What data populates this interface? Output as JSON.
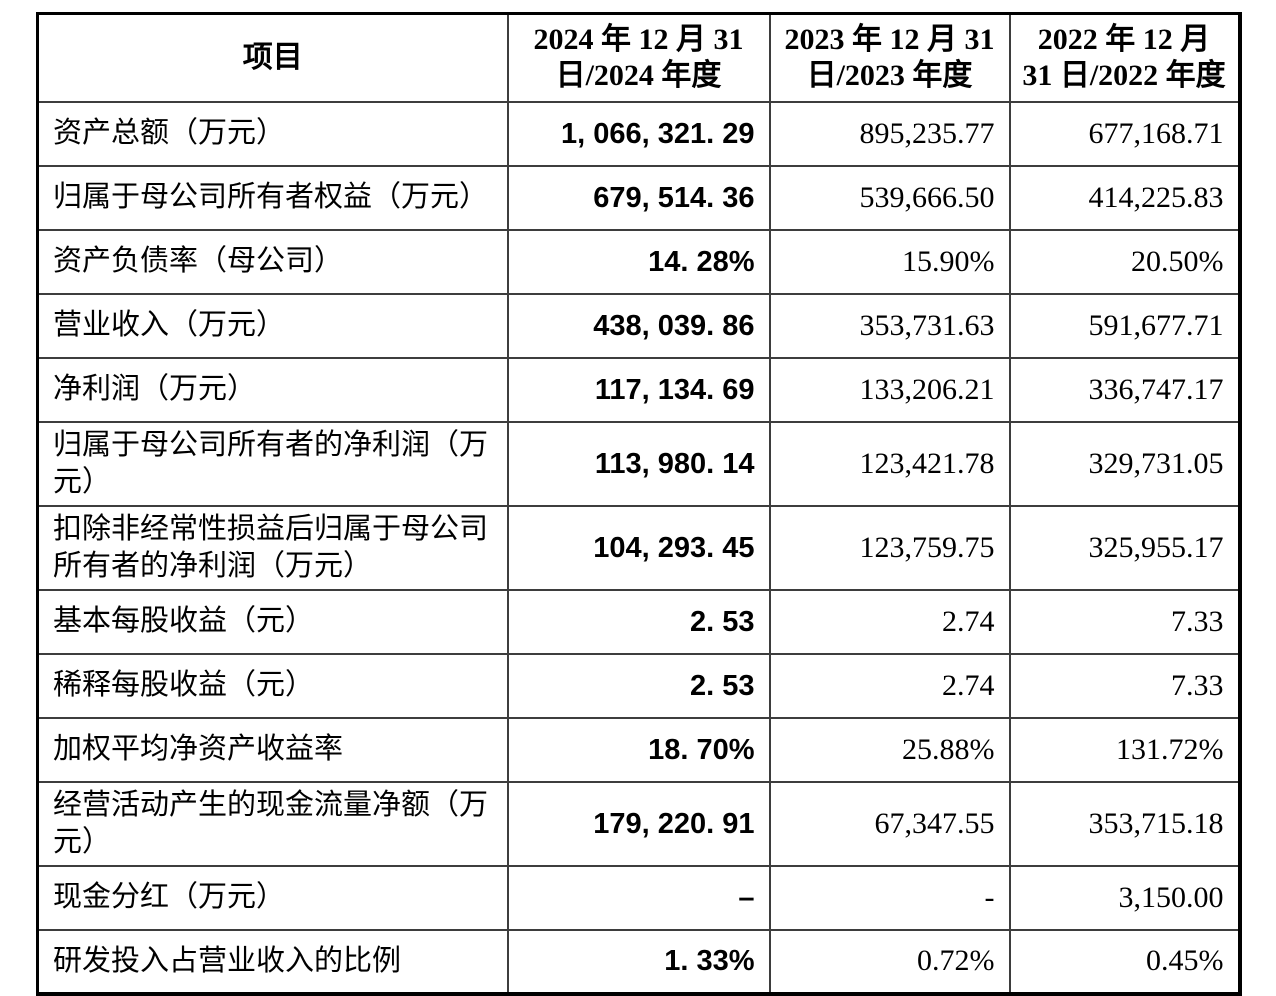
{
  "table": {
    "header": {
      "item_label": "项目",
      "col_2024": "2024 年 12 月 31\n日/2024 年度",
      "col_2023": "2023 年 12 月 31\n日/2023 年度",
      "col_2022": "2022 年 12 月\n31 日/2022 年度"
    },
    "rows": [
      {
        "label": "资产总额（万元）",
        "v2024": "1, 066, 321. 29",
        "v2023": "895,235.77",
        "v2022": "677,168.71"
      },
      {
        "label": "归属于母公司所有者权益（万元）",
        "v2024": "679, 514. 36",
        "v2023": "539,666.50",
        "v2022": "414,225.83"
      },
      {
        "label": "资产负债率（母公司）",
        "v2024": "14. 28%",
        "v2023": "15.90%",
        "v2022": "20.50%"
      },
      {
        "label": "营业收入（万元）",
        "v2024": "438, 039. 86",
        "v2023": "353,731.63",
        "v2022": "591,677.71"
      },
      {
        "label": "净利润（万元）",
        "v2024": "117, 134. 69",
        "v2023": "133,206.21",
        "v2022": "336,747.17"
      },
      {
        "label": "归属于母公司所有者的净利润（万元）",
        "v2024": "113, 980. 14",
        "v2023": "123,421.78",
        "v2022": "329,731.05"
      },
      {
        "label": "扣除非经常性损益后归属于母公司所有者的净利润（万元）",
        "v2024": "104, 293. 45",
        "v2023": "123,759.75",
        "v2022": "325,955.17"
      },
      {
        "label": "基本每股收益（元）",
        "v2024": "2. 53",
        "v2023": "2.74",
        "v2022": "7.33"
      },
      {
        "label": "稀释每股收益（元）",
        "v2024": "2. 53",
        "v2023": "2.74",
        "v2022": "7.33"
      },
      {
        "label": "加权平均净资产收益率",
        "v2024": "18. 70%",
        "v2023": "25.88%",
        "v2022": "131.72%"
      },
      {
        "label": "经营活动产生的现金流量净额（万元）",
        "v2024": "179, 220. 91",
        "v2023": "67,347.55",
        "v2022": "353,715.18"
      },
      {
        "label": "现金分红（万元）",
        "v2024": "–",
        "v2023": "-",
        "v2022": "3,150.00"
      },
      {
        "label": "研发投入占营业收入的比例",
        "v2024": "1. 33%",
        "v2023": "0.72%",
        "v2022": "0.45%"
      }
    ]
  }
}
